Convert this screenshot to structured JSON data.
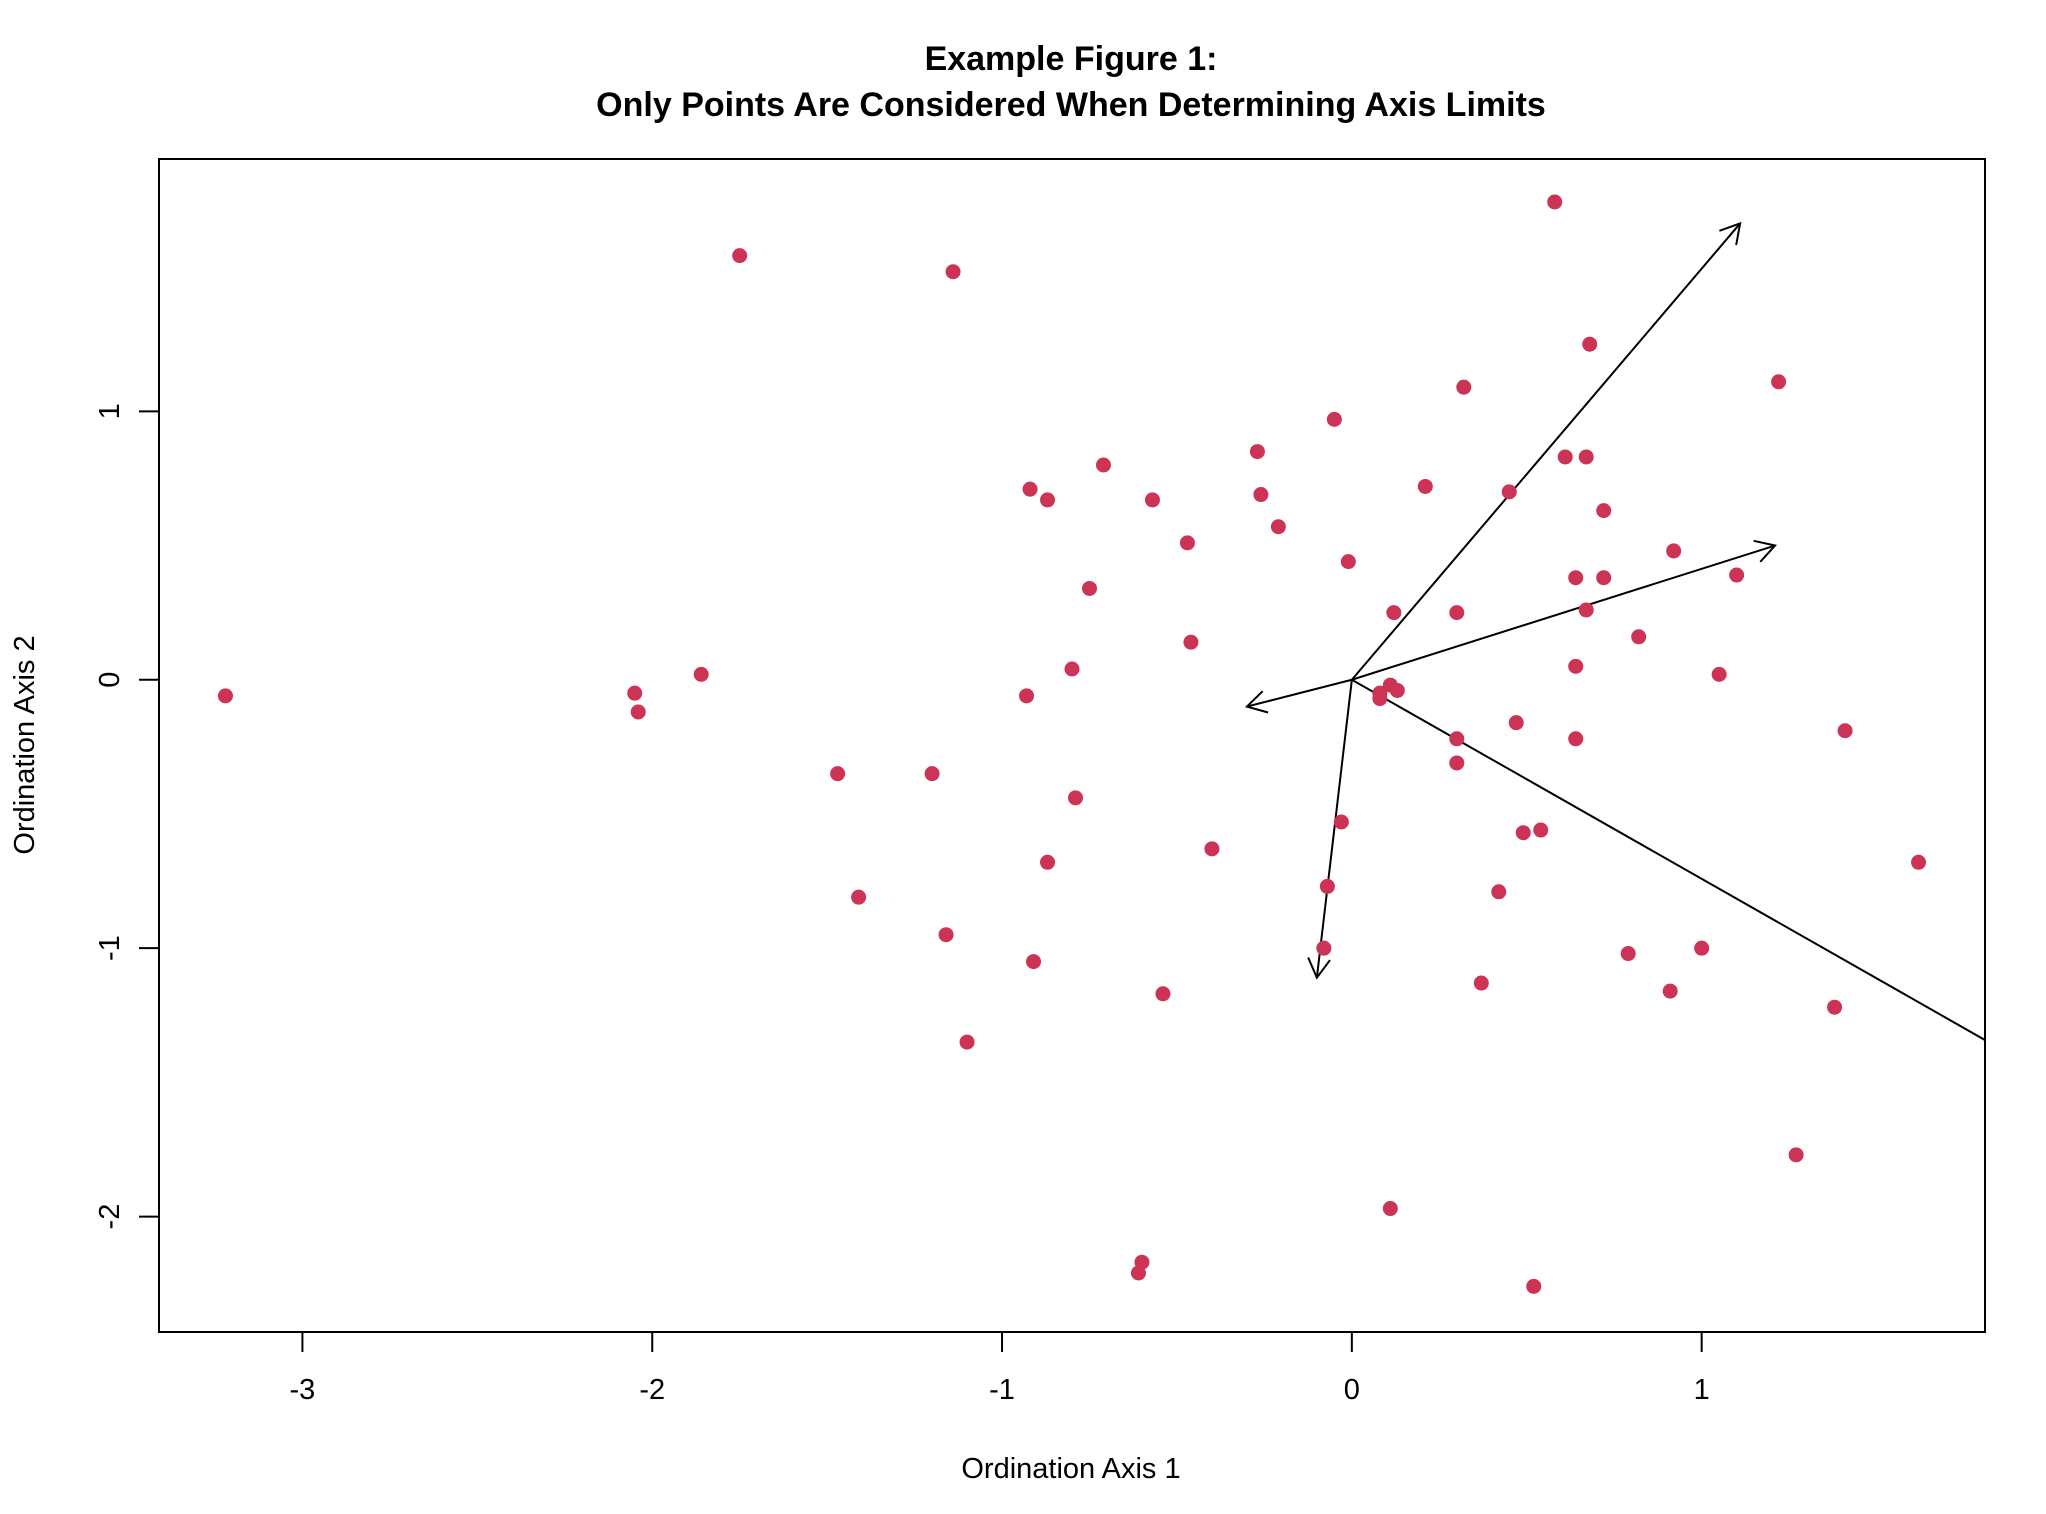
{
  "chart_data": {
    "type": "scatter",
    "title": "Example Figure 1:",
    "subtitle": "Only Points Are Considered When Determining Axis Limits",
    "xlabel": "Ordination Axis 1",
    "ylabel": "Ordination Axis 2",
    "xlim": [
      -3.41,
      1.81
    ],
    "ylim": [
      -2.43,
      1.94
    ],
    "xticks": [
      "-3",
      "-2",
      "-1",
      "0",
      "1"
    ],
    "xtick_values": [
      -3,
      -2,
      -1,
      0,
      1
    ],
    "yticks": [
      "-2",
      "-1",
      "0",
      "1"
    ],
    "ytick_values": [
      -2,
      -1,
      0,
      1
    ],
    "grid": false,
    "point_color": "#cc3355",
    "arrow_color": "#000000",
    "points": [
      [
        0.58,
        1.78
      ],
      [
        -1.75,
        1.58
      ],
      [
        -1.14,
        1.52
      ],
      [
        0.68,
        1.25
      ],
      [
        1.22,
        1.11
      ],
      [
        0.32,
        1.09
      ],
      [
        -0.05,
        0.97
      ],
      [
        -0.27,
        0.85
      ],
      [
        0.61,
        0.83
      ],
      [
        0.67,
        0.83
      ],
      [
        -0.71,
        0.8
      ],
      [
        -0.92,
        0.71
      ],
      [
        -0.87,
        0.67
      ],
      [
        -0.57,
        0.67
      ],
      [
        -0.26,
        0.69
      ],
      [
        0.21,
        0.72
      ],
      [
        0.45,
        0.7
      ],
      [
        0.72,
        0.63
      ],
      [
        -0.21,
        0.57
      ],
      [
        -0.47,
        0.51
      ],
      [
        0.92,
        0.48
      ],
      [
        -0.01,
        0.44
      ],
      [
        0.64,
        0.38
      ],
      [
        0.72,
        0.38
      ],
      [
        1.1,
        0.39
      ],
      [
        -0.75,
        0.34
      ],
      [
        0.12,
        0.25
      ],
      [
        0.3,
        0.25
      ],
      [
        0.67,
        0.26
      ],
      [
        0.82,
        0.16
      ],
      [
        -0.46,
        0.14
      ],
      [
        0.64,
        0.05
      ],
      [
        1.05,
        0.02
      ],
      [
        -0.8,
        0.04
      ],
      [
        -1.86,
        0.02
      ],
      [
        -3.22,
        -0.06
      ],
      [
        -2.05,
        -0.05
      ],
      [
        -2.04,
        -0.12
      ],
      [
        -0.93,
        -0.06
      ],
      [
        0.11,
        -0.02
      ],
      [
        0.13,
        -0.04
      ],
      [
        0.08,
        -0.05
      ],
      [
        0.08,
        -0.07
      ],
      [
        0.47,
        -0.16
      ],
      [
        0.3,
        -0.22
      ],
      [
        0.64,
        -0.22
      ],
      [
        1.41,
        -0.19
      ],
      [
        0.3,
        -0.31
      ],
      [
        -1.47,
        -0.35
      ],
      [
        -1.2,
        -0.35
      ],
      [
        -0.79,
        -0.44
      ],
      [
        -0.03,
        -0.53
      ],
      [
        0.49,
        -0.57
      ],
      [
        0.54,
        -0.56
      ],
      [
        -0.4,
        -0.63
      ],
      [
        -0.87,
        -0.68
      ],
      [
        1.62,
        -0.68
      ],
      [
        -0.07,
        -0.77
      ],
      [
        0.42,
        -0.79
      ],
      [
        -1.41,
        -0.81
      ],
      [
        -1.16,
        -0.95
      ],
      [
        -0.08,
        -1.0
      ],
      [
        0.79,
        -1.02
      ],
      [
        1.0,
        -1.0
      ],
      [
        -0.91,
        -1.05
      ],
      [
        0.37,
        -1.13
      ],
      [
        -0.54,
        -1.17
      ],
      [
        0.91,
        -1.16
      ],
      [
        1.38,
        -1.22
      ],
      [
        -1.1,
        -1.35
      ],
      [
        1.27,
        -1.77
      ],
      [
        0.11,
        -1.97
      ],
      [
        -0.6,
        -2.17
      ],
      [
        -0.61,
        -2.21
      ],
      [
        0.52,
        -2.26
      ]
    ],
    "arrows": [
      {
        "from": [
          0,
          0
        ],
        "to": [
          1.11,
          1.7
        ],
        "head": true
      },
      {
        "from": [
          0,
          0
        ],
        "to": [
          1.21,
          0.5
        ],
        "head": true
      },
      {
        "from": [
          0,
          0
        ],
        "to": [
          -0.3,
          -0.1
        ],
        "head": true
      },
      {
        "from": [
          0,
          0
        ],
        "to": [
          -0.1,
          -1.11
        ],
        "head": true
      },
      {
        "from": [
          0,
          0
        ],
        "to": [
          2.98,
          -2.21
        ],
        "head": true
      }
    ]
  }
}
